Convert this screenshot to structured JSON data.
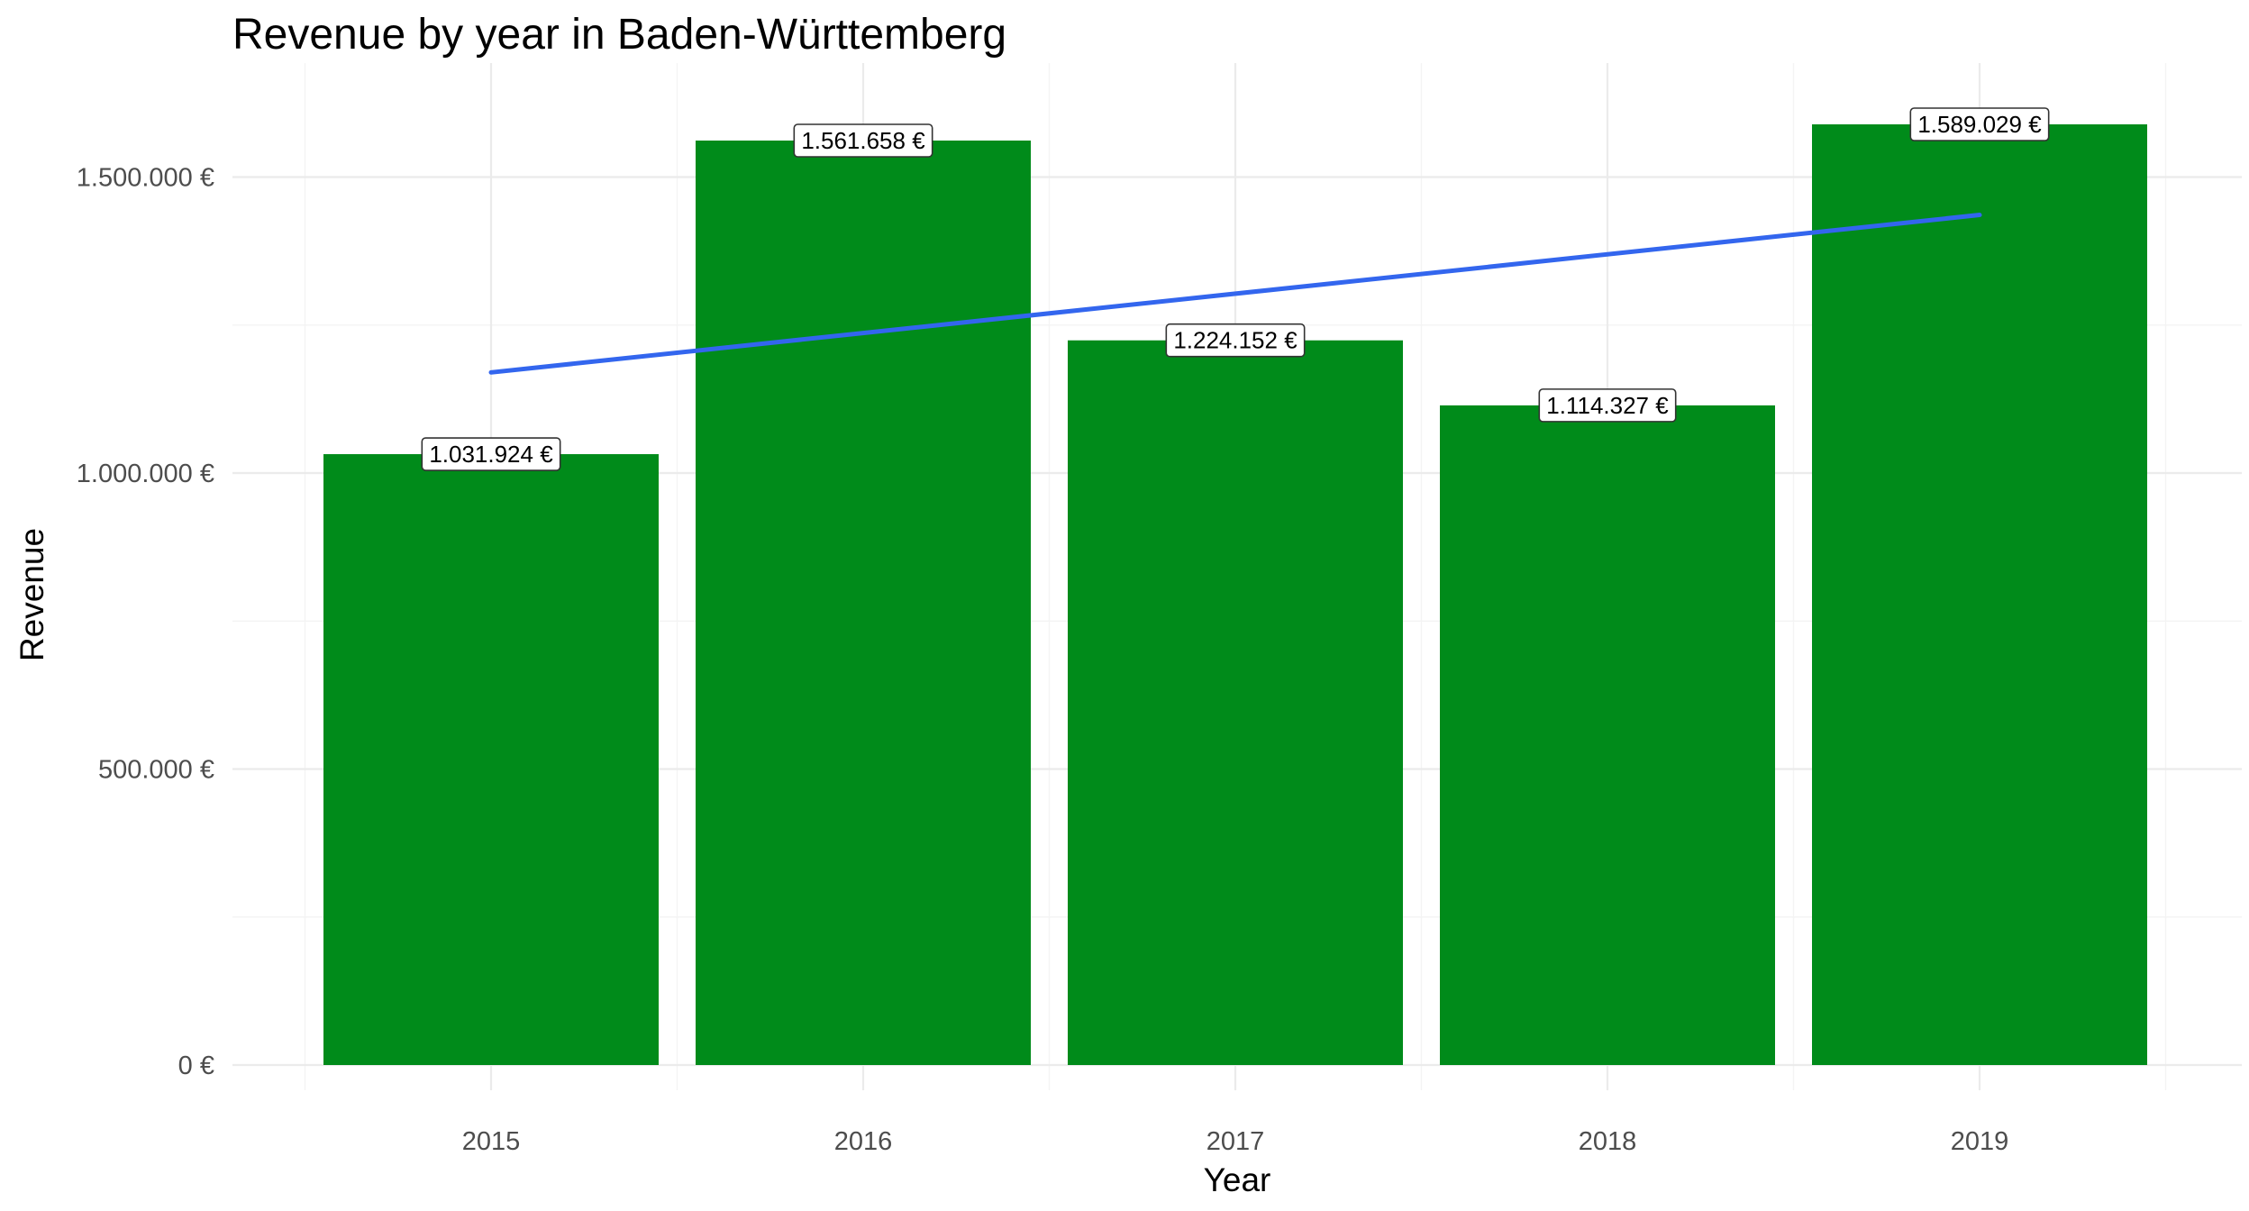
{
  "chart_data": {
    "type": "bar",
    "title": "Revenue by year in Baden-Württemberg",
    "xlabel": "Year",
    "ylabel": "Revenue",
    "categories": [
      "2015",
      "2016",
      "2017",
      "2018",
      "2019"
    ],
    "values": [
      1031924,
      1561658,
      1224152,
      1114327,
      1589029
    ],
    "data_labels": [
      "1.031.924 €",
      "1.561.658 €",
      "1.224.152 €",
      "1.114.327 €",
      "1.589.029 €"
    ],
    "ylim": [
      0,
      1650000
    ],
    "y_ticks": [
      0,
      500000,
      1000000,
      1500000
    ],
    "y_tick_labels": [
      "0 €",
      "500.000 €",
      "1.000.000 €",
      "1.500.000 €"
    ],
    "trend_line": {
      "type": "linear",
      "x_start": "2015",
      "x_end": "2019",
      "y_start": 1170000,
      "y_end": 1436000,
      "color": "#3366ee"
    },
    "bar_color": "#008b1a",
    "grid": true,
    "legend": "none"
  }
}
